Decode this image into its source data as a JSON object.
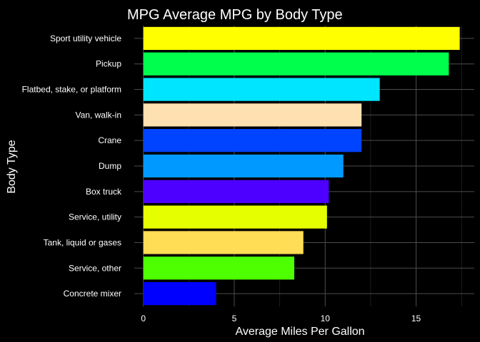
{
  "chart_data": {
    "type": "bar",
    "orientation": "horizontal",
    "title": "MPG Average MPG by Body Type",
    "xlabel": "Average Miles Per Gallon",
    "ylabel": "Body Type",
    "xlim": [
      0,
      17.5
    ],
    "x_ticks": [
      0,
      5,
      10,
      15
    ],
    "grid": true,
    "background": "#000000",
    "text_color": "#ffffff",
    "categories": [
      "Sport utility vehicle",
      "Pickup",
      "Flatbed, stake, or platform",
      "Van, walk-in",
      "Crane",
      "Dump",
      "Box truck",
      "Service, utility",
      "Tank, liquid or gases",
      "Service, other",
      "Concrete mixer"
    ],
    "values": [
      17.4,
      16.8,
      13.0,
      12.0,
      12.0,
      11.0,
      10.2,
      10.1,
      8.8,
      8.3,
      4.0
    ],
    "colors": [
      "#FFFF00",
      "#00FF4D",
      "#00E5FF",
      "#FFE0B0",
      "#0044FF",
      "#0099FF",
      "#4D00FF",
      "#E6FF00",
      "#FFDD55",
      "#4DFF00",
      "#0000FF"
    ]
  }
}
